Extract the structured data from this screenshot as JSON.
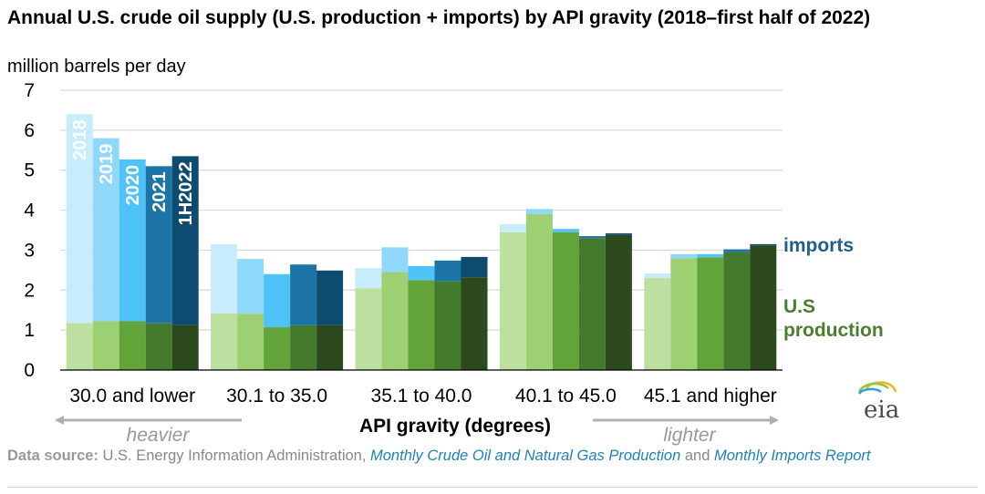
{
  "title": "Annual U.S. crude oil supply (U.S. production + imports) by API gravity (2018–first half of 2022)",
  "units": "million barrels per day",
  "chart_data": {
    "type": "bar",
    "stacked": true,
    "categories": [
      "30.0 and lower",
      "30.1 to 35.0",
      "35.1 to 40.0",
      "40.1 to 45.0",
      "45.1 and higher"
    ],
    "years": [
      "2018",
      "2019",
      "2020",
      "2021",
      "1H2022"
    ],
    "series": [
      {
        "name": "U.S production",
        "values": [
          [
            1.18,
            1.22,
            1.22,
            1.17,
            1.12
          ],
          [
            1.42,
            1.41,
            1.07,
            1.12,
            1.12
          ],
          [
            2.05,
            2.45,
            2.25,
            2.22,
            2.32
          ],
          [
            3.45,
            3.9,
            3.45,
            3.3,
            3.38
          ],
          [
            2.3,
            2.8,
            2.82,
            2.95,
            3.12
          ]
        ]
      },
      {
        "name": "imports",
        "values": [
          [
            5.22,
            4.58,
            4.05,
            3.93,
            4.23
          ],
          [
            1.73,
            1.37,
            1.33,
            1.52,
            1.37
          ],
          [
            0.5,
            0.62,
            0.35,
            0.52,
            0.51
          ],
          [
            0.2,
            0.13,
            0.08,
            0.05,
            0.04
          ],
          [
            0.12,
            0.1,
            0.08,
            0.07,
            0.03
          ]
        ]
      }
    ],
    "colors": {
      "production": [
        "#bde0a1",
        "#9dd073",
        "#62a33a",
        "#447a2c",
        "#2c4a1d"
      ],
      "imports": [
        "#c8ecfb",
        "#8fd8fa",
        "#4fc3f7",
        "#1c75a6",
        "#0d4c6e"
      ]
    },
    "ylim": [
      0,
      7
    ],
    "yticks": [
      0,
      1,
      2,
      3,
      4,
      5,
      6,
      7
    ],
    "xlabel": "API gravity (degrees)",
    "grid": true,
    "legend": [
      {
        "label": "imports",
        "color": "#1f5f88"
      },
      {
        "label": "U.S production",
        "color": "#4a7f2e"
      }
    ],
    "annotations": {
      "left": "heavier",
      "right": "lighter"
    }
  },
  "logo": "eia",
  "footer": {
    "label": "Data source:",
    "text1": " U.S. Energy Information Administration, ",
    "source1": "Monthly Crude Oil and Natural Gas Production",
    "text2": " and ",
    "source2": "Monthly Imports Report"
  }
}
